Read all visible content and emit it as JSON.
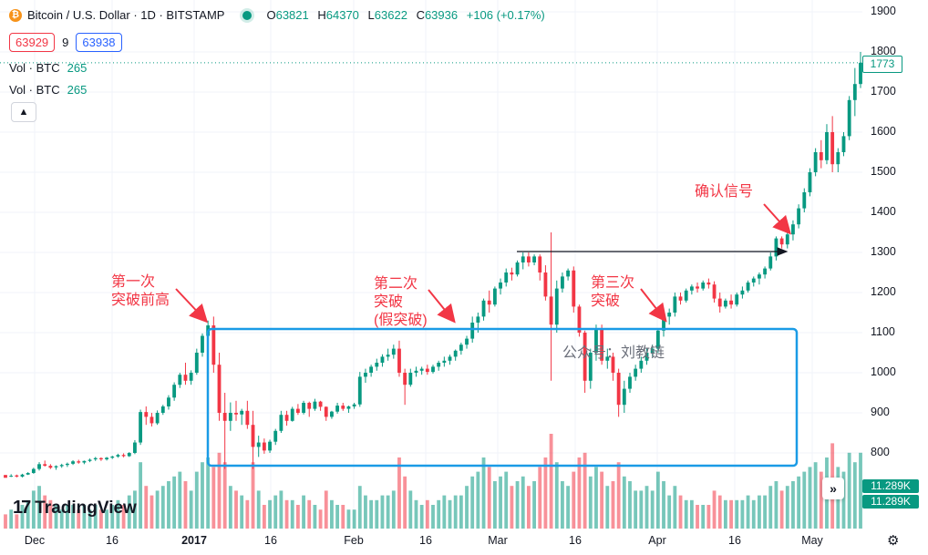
{
  "header": {
    "symbol_title": "Bitcoin / U.S. Dollar · 1D · BITSTAMP",
    "ohlc": [
      {
        "k": "O",
        "v": "63821"
      },
      {
        "k": "H",
        "v": "64370"
      },
      {
        "k": "L",
        "v": "63622"
      },
      {
        "k": "C",
        "v": "63936"
      }
    ],
    "change": "+106 (+0.17%)",
    "sell_price": "63929",
    "spread": "9",
    "buy_price": "63938",
    "volume_rows": [
      {
        "label": "Vol · BTC",
        "value": "265"
      },
      {
        "label": "Vol · BTC",
        "value": "265"
      }
    ]
  },
  "chart_data": {
    "type": "candlestick",
    "y_axis": {
      "ticks": [
        800,
        900,
        1000,
        1100,
        1200,
        1300,
        1400,
        1500,
        1600,
        1700,
        1800,
        1900
      ],
      "range": [
        720,
        1920
      ]
    },
    "x_axis": {
      "labels": [
        "Dec",
        "16",
        "2017",
        "16",
        "Feb",
        "16",
        "Mar",
        "16",
        "Apr",
        "16",
        "May"
      ],
      "bold": [
        "2017"
      ]
    },
    "last_price": "1773",
    "volume_label": "11.289K",
    "colors": {
      "up": "#089981",
      "down": "#f23645"
    },
    "grid": true,
    "candles": [
      [
        745,
        745,
        740,
        738,
        3
      ],
      [
        742,
        747,
        740,
        743,
        4
      ],
      [
        744,
        746,
        739,
        741,
        3
      ],
      [
        741,
        748,
        739,
        746,
        5
      ],
      [
        746,
        752,
        745,
        750,
        6
      ],
      [
        750,
        763,
        748,
        760,
        8
      ],
      [
        760,
        777,
        756,
        772,
        9
      ],
      [
        772,
        781,
        766,
        768,
        7
      ],
      [
        768,
        772,
        760,
        763,
        6
      ],
      [
        764,
        769,
        758,
        767,
        5
      ],
      [
        767,
        773,
        763,
        770,
        4
      ],
      [
        770,
        776,
        765,
        773,
        5
      ],
      [
        773,
        782,
        770,
        779,
        5
      ],
      [
        779,
        783,
        773,
        776,
        4
      ],
      [
        776,
        781,
        772,
        780,
        5
      ],
      [
        780,
        786,
        777,
        783,
        4
      ],
      [
        784,
        790,
        780,
        787,
        5
      ],
      [
        787,
        789,
        780,
        784,
        4
      ],
      [
        784,
        790,
        781,
        788,
        4
      ],
      [
        788,
        793,
        785,
        791,
        5
      ],
      [
        791,
        798,
        788,
        795,
        6
      ],
      [
        795,
        799,
        789,
        792,
        5
      ],
      [
        792,
        802,
        790,
        800,
        7
      ],
      [
        800,
        832,
        797,
        826,
        8
      ],
      [
        826,
        908,
        820,
        902,
        14
      ],
      [
        902,
        916,
        870,
        890,
        9
      ],
      [
        890,
        900,
        866,
        874,
        7
      ],
      [
        874,
        906,
        870,
        900,
        8
      ],
      [
        900,
        920,
        895,
        916,
        9
      ],
      [
        916,
        944,
        908,
        938,
        10
      ],
      [
        938,
        976,
        930,
        970,
        11
      ],
      [
        970,
        1000,
        962,
        995,
        12
      ],
      [
        995,
        1025,
        970,
        980,
        10
      ],
      [
        980,
        1006,
        970,
        1000,
        8
      ],
      [
        1000,
        1060,
        995,
        1050,
        12
      ],
      [
        1050,
        1098,
        1040,
        1092,
        14
      ],
      [
        1092,
        1130,
        1080,
        1118,
        15
      ],
      [
        1118,
        1140,
        1000,
        1020,
        13
      ],
      [
        1020,
        1050,
        880,
        900,
        16
      ],
      [
        900,
        950,
        760,
        880,
        14
      ],
      [
        880,
        926,
        855,
        900,
        9
      ],
      [
        900,
        930,
        880,
        896,
        8
      ],
      [
        896,
        910,
        870,
        905,
        7
      ],
      [
        905,
        930,
        860,
        870,
        6
      ],
      [
        870,
        905,
        760,
        815,
        14
      ],
      [
        815,
        843,
        790,
        826,
        8
      ],
      [
        826,
        836,
        798,
        806,
        5
      ],
      [
        806,
        833,
        800,
        828,
        6
      ],
      [
        828,
        860,
        820,
        855,
        7
      ],
      [
        855,
        905,
        850,
        895,
        8
      ],
      [
        895,
        905,
        868,
        880,
        6
      ],
      [
        880,
        915,
        878,
        910,
        6
      ],
      [
        910,
        922,
        895,
        900,
        5
      ],
      [
        900,
        930,
        896,
        925,
        7
      ],
      [
        925,
        928,
        890,
        910,
        6
      ],
      [
        910,
        935,
        905,
        928,
        5
      ],
      [
        928,
        930,
        905,
        915,
        4
      ],
      [
        915,
        916,
        880,
        890,
        8
      ],
      [
        890,
        905,
        885,
        903,
        6
      ],
      [
        903,
        925,
        898,
        918,
        5
      ],
      [
        918,
        925,
        905,
        910,
        5
      ],
      [
        910,
        918,
        900,
        916,
        4
      ],
      [
        916,
        925,
        910,
        921,
        4
      ],
      [
        921,
        1002,
        915,
        990,
        9
      ],
      [
        990,
        1010,
        975,
        1000,
        7
      ],
      [
        1000,
        1020,
        990,
        1015,
        6
      ],
      [
        1015,
        1035,
        1005,
        1025,
        6
      ],
      [
        1025,
        1046,
        1015,
        1040,
        7
      ],
      [
        1040,
        1060,
        1030,
        1045,
        7
      ],
      [
        1045,
        1070,
        1035,
        1060,
        8
      ],
      [
        1060,
        1080,
        990,
        1000,
        15
      ],
      [
        1000,
        1010,
        920,
        970,
        11
      ],
      [
        970,
        1010,
        965,
        1000,
        8
      ],
      [
        1000,
        1015,
        990,
        1005,
        6
      ],
      [
        1005,
        1015,
        995,
        1010,
        5
      ],
      [
        1010,
        1020,
        995,
        1002,
        6
      ],
      [
        1002,
        1020,
        998,
        1015,
        5
      ],
      [
        1015,
        1030,
        1005,
        1025,
        6
      ],
      [
        1025,
        1040,
        1015,
        1030,
        7
      ],
      [
        1030,
        1045,
        1020,
        1040,
        6
      ],
      [
        1040,
        1058,
        1030,
        1055,
        7
      ],
      [
        1055,
        1075,
        1045,
        1070,
        7
      ],
      [
        1070,
        1092,
        1060,
        1085,
        9
      ],
      [
        1085,
        1140,
        1075,
        1125,
        11
      ],
      [
        1125,
        1150,
        1100,
        1140,
        12
      ],
      [
        1140,
        1185,
        1130,
        1180,
        15
      ],
      [
        1180,
        1205,
        1150,
        1170,
        13
      ],
      [
        1170,
        1215,
        1165,
        1210,
        10
      ],
      [
        1210,
        1235,
        1195,
        1225,
        11
      ],
      [
        1225,
        1260,
        1215,
        1250,
        12
      ],
      [
        1250,
        1262,
        1230,
        1245,
        9
      ],
      [
        1245,
        1280,
        1240,
        1275,
        10
      ],
      [
        1275,
        1300,
        1258,
        1290,
        11
      ],
      [
        1290,
        1300,
        1265,
        1275,
        9
      ],
      [
        1275,
        1295,
        1268,
        1290,
        10
      ],
      [
        1290,
        1295,
        1230,
        1250,
        13
      ],
      [
        1250,
        1268,
        1180,
        1190,
        15
      ],
      [
        1190,
        1350,
        980,
        1120,
        20
      ],
      [
        1120,
        1230,
        1100,
        1210,
        14
      ],
      [
        1210,
        1250,
        1200,
        1240,
        10
      ],
      [
        1240,
        1260,
        1230,
        1255,
        9
      ],
      [
        1255,
        1265,
        1150,
        1165,
        12
      ],
      [
        1165,
        1170,
        1090,
        1100,
        15
      ],
      [
        1100,
        1105,
        950,
        980,
        16
      ],
      [
        980,
        1060,
        960,
        1050,
        11
      ],
      [
        1050,
        1120,
        1030,
        1110,
        13
      ],
      [
        1110,
        1120,
        1020,
        1030,
        12
      ],
      [
        1030,
        1060,
        1010,
        1040,
        9
      ],
      [
        1040,
        1050,
        980,
        1000,
        10
      ],
      [
        1000,
        1010,
        890,
        920,
        14
      ],
      [
        920,
        980,
        900,
        960,
        11
      ],
      [
        960,
        1000,
        950,
        990,
        10
      ],
      [
        990,
        1020,
        980,
        1010,
        8
      ],
      [
        1010,
        1040,
        1000,
        1030,
        8
      ],
      [
        1030,
        1060,
        1020,
        1050,
        9
      ],
      [
        1050,
        1070,
        1040,
        1060,
        8
      ],
      [
        1060,
        1110,
        1050,
        1105,
        12
      ],
      [
        1105,
        1150,
        1090,
        1140,
        10
      ],
      [
        1140,
        1160,
        1120,
        1150,
        7
      ],
      [
        1150,
        1200,
        1140,
        1190,
        9
      ],
      [
        1190,
        1200,
        1170,
        1180,
        7
      ],
      [
        1180,
        1210,
        1175,
        1205,
        6
      ],
      [
        1205,
        1220,
        1195,
        1215,
        6
      ],
      [
        1215,
        1225,
        1200,
        1210,
        5
      ],
      [
        1210,
        1230,
        1205,
        1225,
        5
      ],
      [
        1225,
        1235,
        1210,
        1220,
        5
      ],
      [
        1220,
        1228,
        1175,
        1185,
        8
      ],
      [
        1185,
        1200,
        1150,
        1165,
        7
      ],
      [
        1165,
        1185,
        1160,
        1180,
        6
      ],
      [
        1180,
        1195,
        1160,
        1170,
        6
      ],
      [
        1170,
        1200,
        1165,
        1195,
        6
      ],
      [
        1195,
        1215,
        1185,
        1205,
        6
      ],
      [
        1205,
        1230,
        1200,
        1225,
        7
      ],
      [
        1225,
        1240,
        1215,
        1235,
        6
      ],
      [
        1235,
        1250,
        1220,
        1245,
        7
      ],
      [
        1245,
        1265,
        1235,
        1260,
        7
      ],
      [
        1260,
        1300,
        1255,
        1290,
        9
      ],
      [
        1290,
        1340,
        1280,
        1335,
        10
      ],
      [
        1335,
        1340,
        1310,
        1320,
        8
      ],
      [
        1320,
        1360,
        1310,
        1345,
        9
      ],
      [
        1345,
        1380,
        1330,
        1370,
        10
      ],
      [
        1370,
        1420,
        1360,
        1410,
        11
      ],
      [
        1410,
        1460,
        1400,
        1450,
        12
      ],
      [
        1450,
        1510,
        1440,
        1500,
        13
      ],
      [
        1500,
        1560,
        1490,
        1550,
        14
      ],
      [
        1550,
        1580,
        1510,
        1530,
        12
      ],
      [
        1530,
        1620,
        1520,
        1600,
        15
      ],
      [
        1600,
        1640,
        1500,
        1520,
        18
      ],
      [
        1520,
        1560,
        1500,
        1550,
        13
      ],
      [
        1550,
        1600,
        1540,
        1590,
        12
      ],
      [
        1590,
        1690,
        1580,
        1680,
        16
      ],
      [
        1680,
        1760,
        1640,
        1720,
        14
      ],
      [
        1720,
        1800,
        1710,
        1773,
        16
      ]
    ]
  },
  "annotations": [
    {
      "lines": [
        "第一次",
        "突破前高"
      ]
    },
    {
      "lines": [
        "第二次",
        "突破",
        "(假突破)"
      ]
    },
    {
      "lines": [
        "第三次",
        "突破"
      ]
    },
    {
      "lines": [
        "确认信号"
      ]
    }
  ],
  "watermark": "公众号：刘教链",
  "branding": {
    "logo_mark": "17",
    "logo_text": "TradingView"
  },
  "icons": {
    "scroll": "double-chevron-right-icon",
    "settings": "gear-icon",
    "collapse": "chevron-up-icon"
  }
}
